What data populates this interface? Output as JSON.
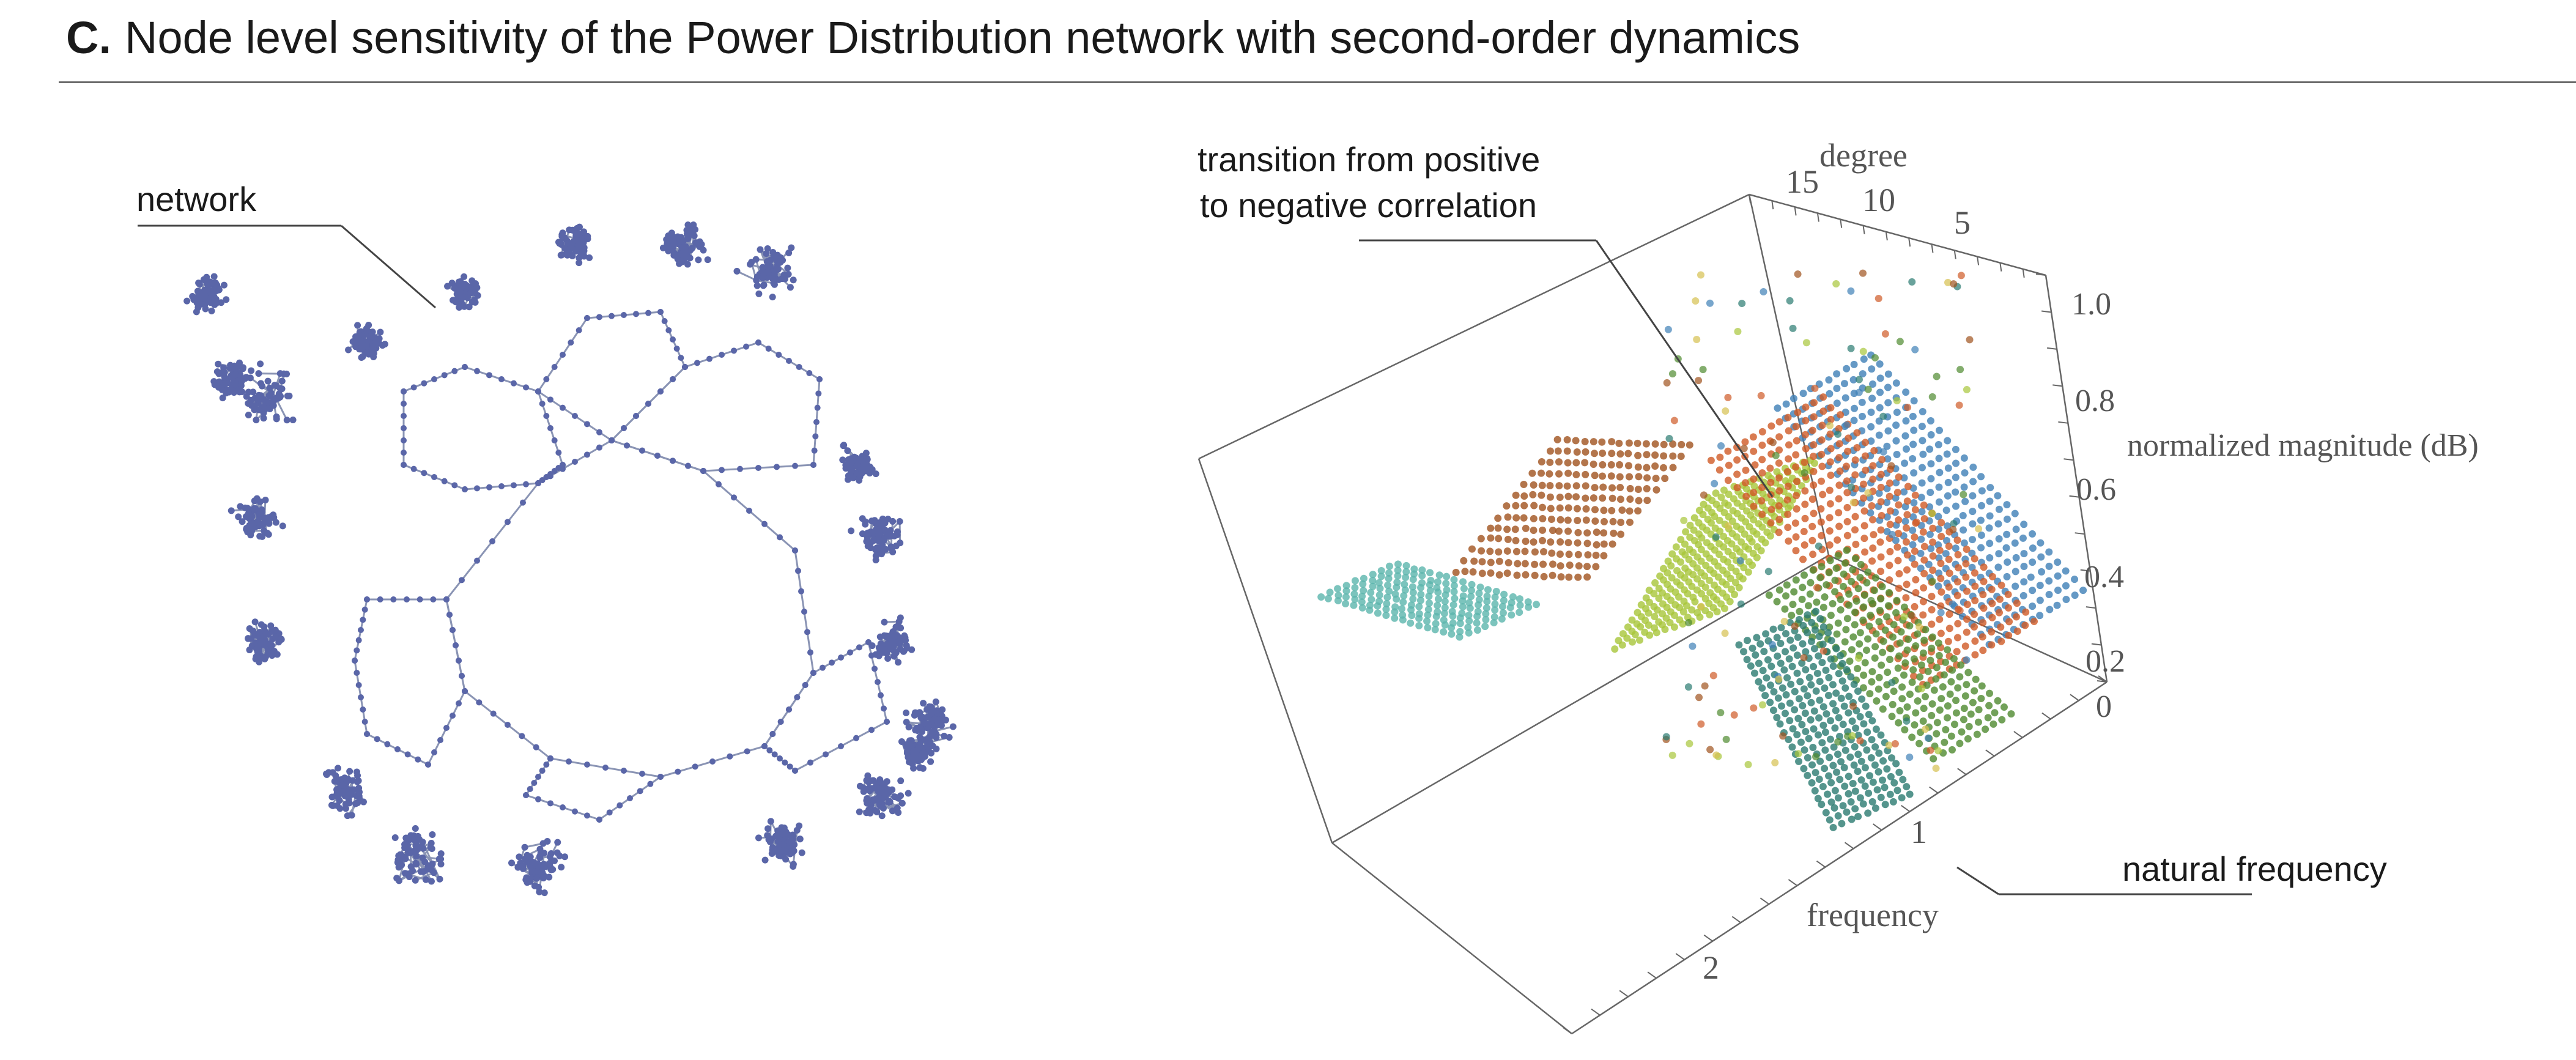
{
  "panel": {
    "label": "C.",
    "title": "Node level sensitivity of the Power Distribution network with second-order dynamics"
  },
  "network_panel": {
    "callout": "network",
    "node_color": "#5a66a8",
    "edge_color": "#8a94b4"
  },
  "plot3d": {
    "callouts": {
      "transition_line1": "transition from positive",
      "transition_line2": "to negative correlation",
      "natural_frequency": "natural frequency"
    },
    "axes": {
      "degree": {
        "label": "degree",
        "ticks": [
          "15",
          "10",
          "5"
        ]
      },
      "magnitude": {
        "label": "normalized magnitude (dB)",
        "ticks": [
          "1.0",
          "0.8",
          "0.6",
          "0.4",
          "0.2",
          "0"
        ]
      },
      "frequency": {
        "label": "frequency",
        "ticks": [
          "1",
          "2"
        ]
      }
    },
    "colors": {
      "teal": "#5bb5ad",
      "brown": "#a0521e",
      "lime": "#a8c63a",
      "blue": "#3f80b6",
      "orange": "#cf5a26",
      "green": "#4f8a2f",
      "darkteal": "#2a7a70",
      "yellow": "#d6c050"
    },
    "box_color": "#666666"
  }
}
